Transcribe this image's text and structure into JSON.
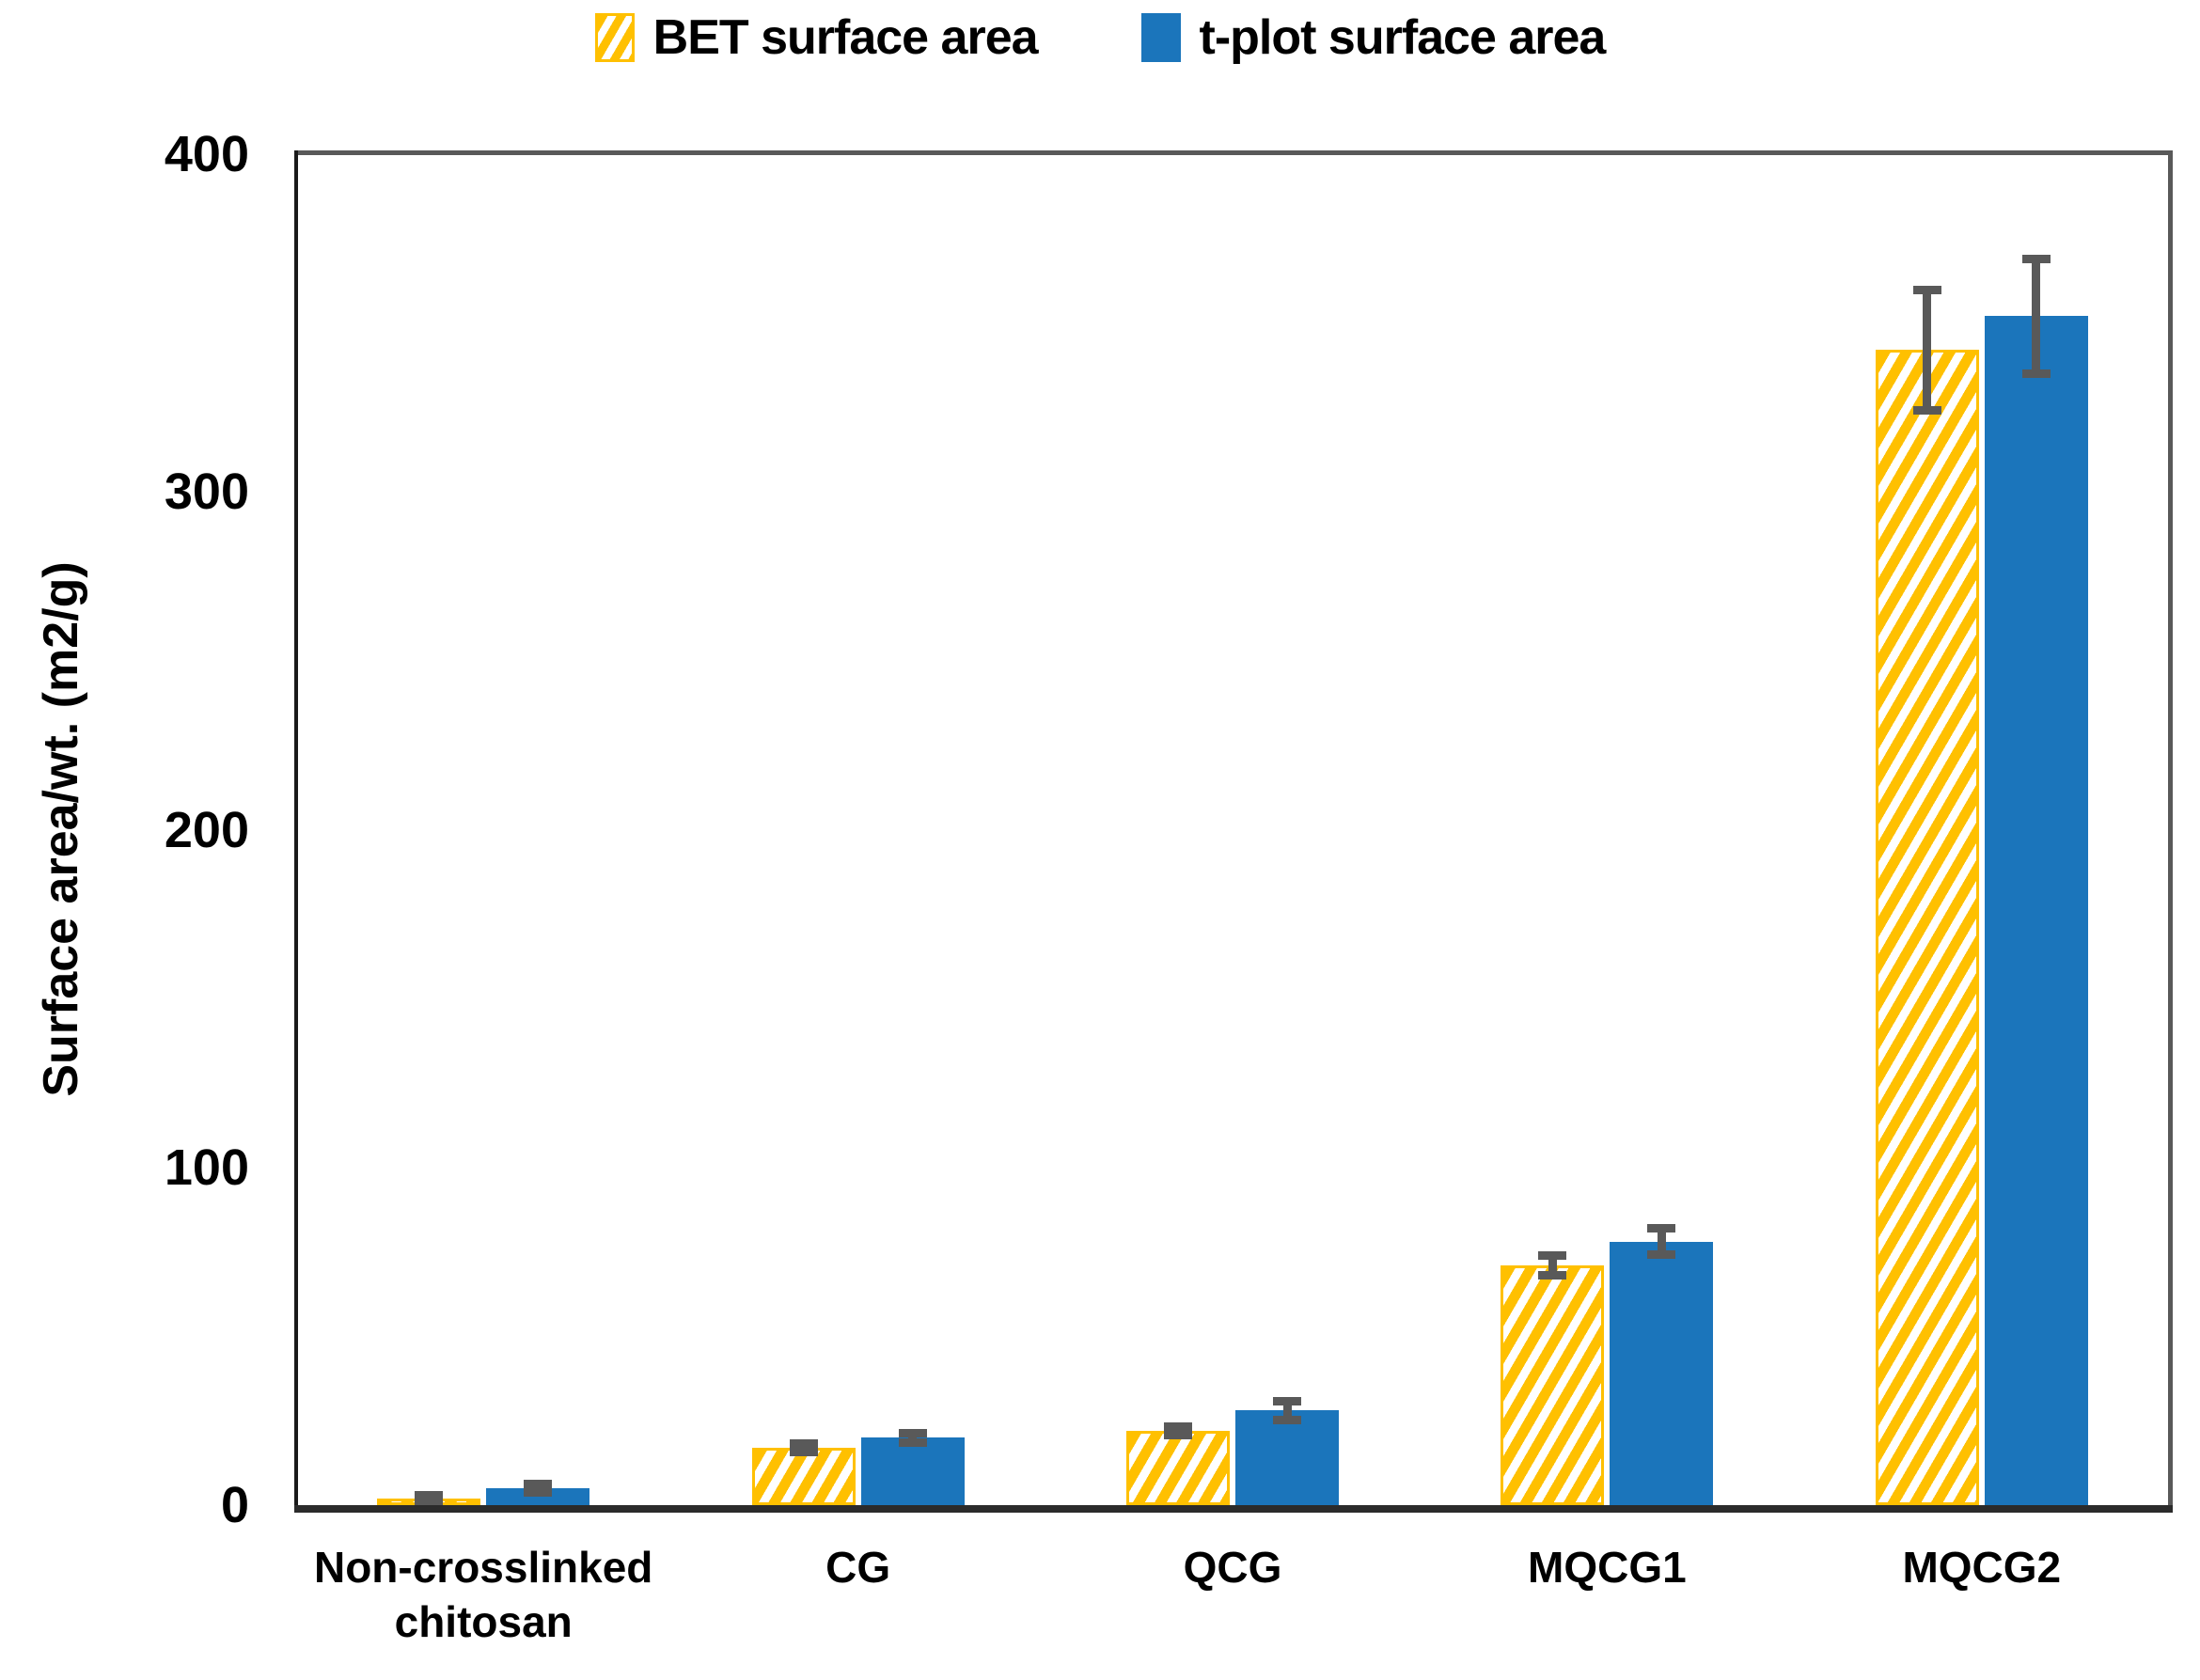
{
  "chart_data": {
    "type": "bar",
    "title": "",
    "xlabel": "",
    "ylabel": "Surface area/wt. (m2/g)",
    "ylim": [
      0,
      400
    ],
    "yticks": [
      0,
      100,
      200,
      300,
      400
    ],
    "grid": false,
    "legend_position": "top-center",
    "categories": [
      "Non-crosslinked chitosan",
      "CG",
      "QCG",
      "MQCG1",
      "MQCG2"
    ],
    "series": [
      {
        "name": "BET surface area",
        "style": "hatched",
        "color": "#FFC000",
        "values": [
          2,
          17,
          22,
          71,
          342
        ],
        "errors": [
          1,
          1.5,
          1.5,
          3,
          18
        ]
      },
      {
        "name": "t-plot surface area",
        "style": "solid",
        "color": "#1B75BB",
        "values": [
          5,
          20,
          28,
          78,
          352
        ],
        "errors": [
          1.5,
          1.5,
          3,
          4,
          17
        ]
      }
    ],
    "error_bar_color": "#595959",
    "axis_color": "#1a1a1a",
    "plot_border_color": "#595959"
  }
}
